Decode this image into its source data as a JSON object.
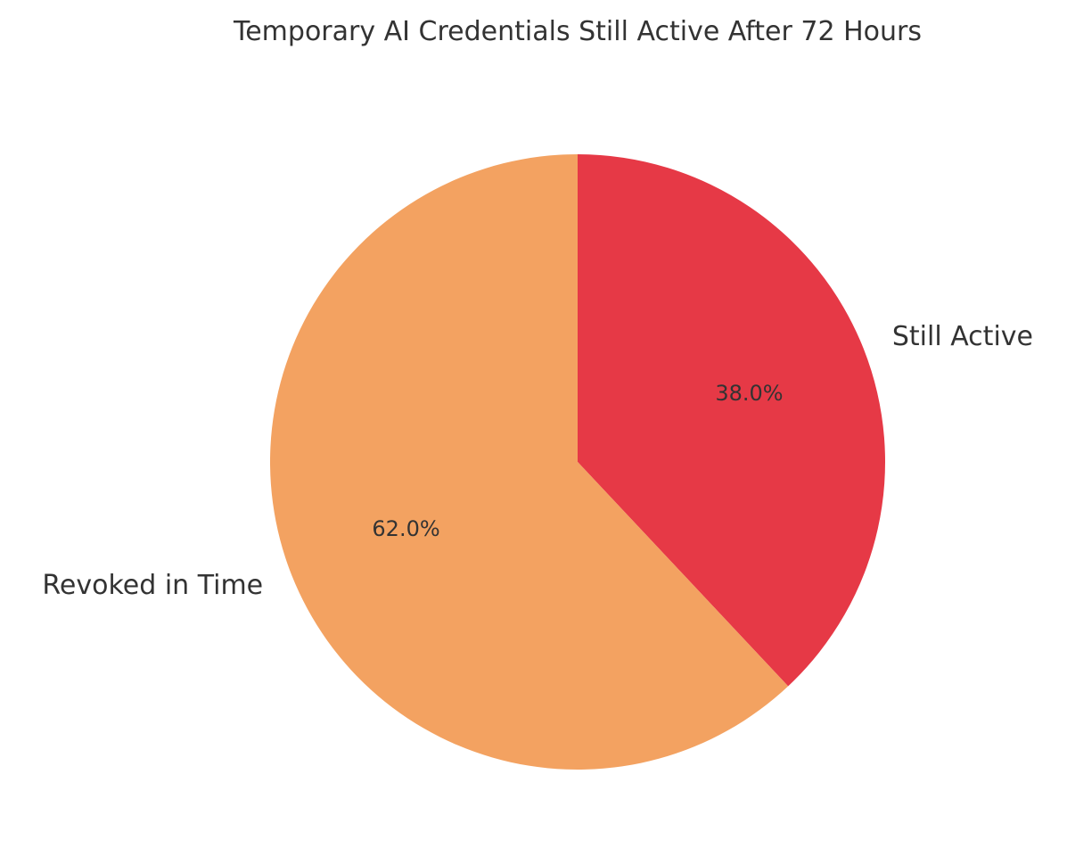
{
  "chart_data": {
    "type": "pie",
    "title": "Temporary AI Credentials Still Active After 72 Hours",
    "categories": [
      "Still Active",
      "Revoked in Time"
    ],
    "values": [
      38.0,
      62.0
    ],
    "value_labels": [
      "38.0%",
      "62.0%"
    ],
    "colors": [
      "#e63946",
      "#f3a261"
    ],
    "start_angle": "top (12 o'clock)",
    "direction": "clockwise",
    "legend": "none"
  }
}
